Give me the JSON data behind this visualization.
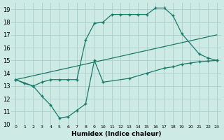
{
  "line1_x": [
    0,
    2,
    3,
    4,
    5,
    6,
    7,
    8,
    9,
    10,
    11,
    12,
    13,
    14,
    15,
    16,
    17,
    18,
    19,
    21,
    22,
    23
  ],
  "line1_y": [
    13.5,
    13.0,
    13.3,
    13.5,
    13.5,
    13.5,
    13.5,
    16.6,
    17.9,
    18.0,
    18.6,
    18.6,
    18.6,
    18.6,
    18.6,
    19.1,
    19.1,
    18.5,
    17.1,
    15.5,
    15.2,
    15.0
  ],
  "line2_x": [
    0,
    23
  ],
  "line2_y": [
    13.5,
    17.0
  ],
  "line3_x": [
    0,
    1,
    2,
    3,
    4,
    5,
    6,
    7,
    8,
    9,
    10,
    13,
    15,
    17,
    18,
    19,
    20,
    21,
    22,
    23
  ],
  "line3_y": [
    13.5,
    13.2,
    13.0,
    12.2,
    11.5,
    10.5,
    10.6,
    11.1,
    11.6,
    15.0,
    13.3,
    13.6,
    14.0,
    14.4,
    14.5,
    14.7,
    14.8,
    14.9,
    14.95,
    15.0
  ],
  "line_color": "#1a7a6a",
  "bg_color": "#cdeae5",
  "grid_color": "#aacfca",
  "xlabel": "Humidex (Indice chaleur)",
  "xlim": [
    -0.5,
    23.5
  ],
  "ylim": [
    10,
    19.5
  ],
  "xticks": [
    0,
    1,
    2,
    3,
    4,
    5,
    6,
    7,
    8,
    9,
    10,
    11,
    12,
    13,
    14,
    15,
    16,
    17,
    18,
    19,
    20,
    21,
    22,
    23
  ],
  "yticks": [
    10,
    11,
    12,
    13,
    14,
    15,
    16,
    17,
    18,
    19
  ]
}
